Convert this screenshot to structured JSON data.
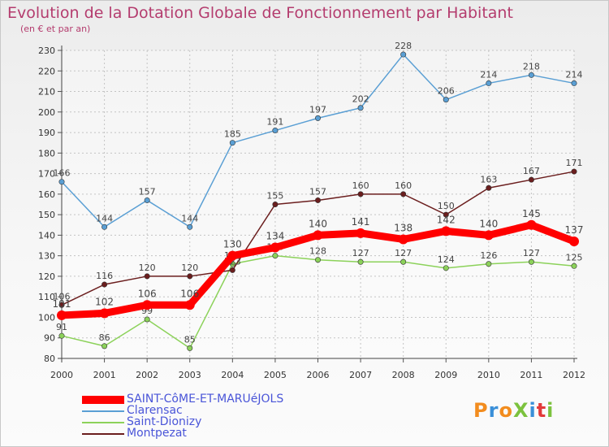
{
  "header": {
    "title": "Evolution de la Dotation Globale de Fonctionnement par Habitant",
    "subtitle": "(en € et par an)"
  },
  "brand": {
    "logo_text": "ProXiti"
  },
  "chart_data": {
    "type": "line",
    "title": "Evolution de la Dotation Globale de Fonctionnement par Habitant",
    "subtitle": "(en € et par an)",
    "x": [
      2000,
      2001,
      2002,
      2003,
      2004,
      2005,
      2006,
      2007,
      2008,
      2009,
      2010,
      2011,
      2012
    ],
    "ylim": [
      80,
      230
    ],
    "yticks": [
      80,
      90,
      100,
      110,
      120,
      130,
      140,
      150,
      160,
      170,
      180,
      190,
      200,
      210,
      220,
      230
    ],
    "grid": true,
    "legend_position": "bottom-left",
    "series": [
      {
        "name": "SAINT-CôME-ET-MARUéJOLS",
        "color": "#ff0000",
        "emphasis": true,
        "values": [
          101,
          102,
          106,
          106,
          130,
          134,
          140,
          141,
          138,
          142,
          140,
          145,
          137
        ]
      },
      {
        "name": "Clarensac",
        "color": "#5a9fd4",
        "values": [
          166,
          144,
          157,
          144,
          185,
          191,
          197,
          202,
          228,
          206,
          214,
          218,
          214
        ]
      },
      {
        "name": "Saint-Dionizy",
        "color": "#8cd25a",
        "values": [
          91,
          86,
          99,
          85,
          126,
          130,
          128,
          127,
          127,
          124,
          126,
          127,
          125
        ]
      },
      {
        "name": "Montpezat",
        "color": "#6b1e1e",
        "values": [
          106,
          116,
          120,
          120,
          123,
          155,
          157,
          160,
          160,
          150,
          163,
          167,
          171
        ]
      }
    ]
  }
}
